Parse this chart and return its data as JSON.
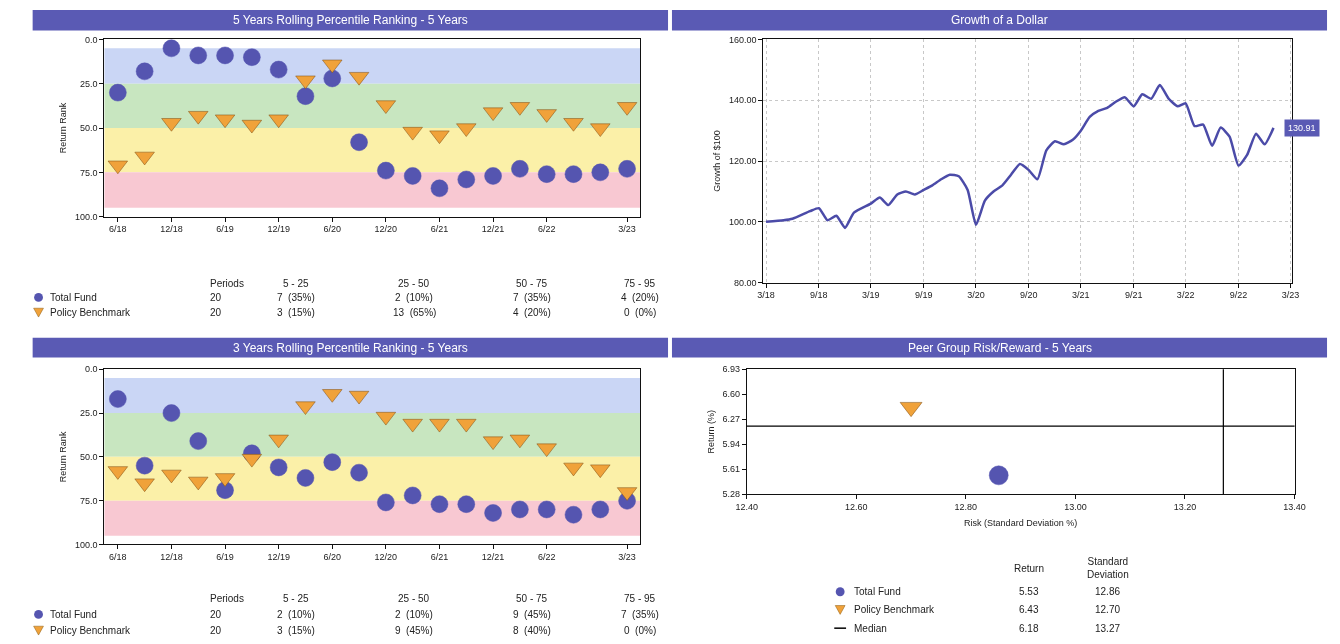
{
  "chart_data": [
    {
      "type": "scatter",
      "title": "5 Years Rolling Percentile Ranking - 5 Years",
      "ylabel": "Return Rank",
      "categories": [
        "6/18",
        null,
        "12/18",
        null,
        "6/19",
        null,
        "12/19",
        null,
        "6/20",
        null,
        "12/20",
        null,
        "6/21",
        null,
        "12/21",
        null,
        "6/22",
        null,
        null,
        "3/23"
      ],
      "series": [
        {
          "name": "Total Fund",
          "color": "#5555b0",
          "marker": "circle",
          "values": [
            30,
            18,
            5,
            9,
            9,
            10,
            17,
            32,
            22,
            58,
            74,
            77,
            84,
            79,
            77,
            73,
            76,
            76,
            75,
            73
          ]
        },
        {
          "name": "Policy Benchmark",
          "color": "#f0a23a",
          "marker": "triangle",
          "values": [
            71,
            66,
            47,
            43,
            45,
            48,
            45,
            23,
            14,
            21,
            37,
            52,
            54,
            50,
            41,
            38,
            42,
            47,
            50,
            38
          ]
        }
      ],
      "ylim": [
        100,
        0
      ],
      "yticks": [
        {
          "value": 0,
          "label": "0.0"
        },
        {
          "value": 25,
          "label": "25.0"
        },
        {
          "value": 50,
          "label": "50.0"
        },
        {
          "value": 75,
          "label": "75.0"
        },
        {
          "value": 100,
          "label": "100.0"
        }
      ],
      "bands": [
        {
          "axis": "y",
          "from": 5,
          "to": 25,
          "color": "#cad6f5"
        },
        {
          "axis": "y",
          "from": 25,
          "to": 50,
          "color": "#c8e6c0"
        },
        {
          "axis": "y",
          "from": 50,
          "to": 75,
          "color": "#fbf0a8"
        },
        {
          "axis": "y",
          "from": 75,
          "to": 95,
          "color": "#f8c8d2"
        }
      ],
      "legend": "bottom left",
      "grid": false,
      "annotations": [
        "Periods",
        "5 - 25",
        "25 - 50",
        "50 - 75",
        "75 - 95",
        "20",
        "7  (35%)",
        "2  (10%)",
        "7  (35%)",
        "4  (20%)",
        "20",
        "3  (15%)",
        "13  (65%)",
        "4  (20%)",
        "0  (0%)"
      ]
    },
    {
      "type": "line",
      "title": "Growth of a Dollar",
      "ylabel": "Growth of $100",
      "x": [
        "2018-03",
        "2018-05",
        "2018-06",
        "2018-08",
        "2018-09",
        "2018-10",
        "2018-11",
        "2018-12",
        "2019-01",
        "2019-03",
        "2019-04",
        "2019-05",
        "2019-06",
        "2019-07",
        "2019-08",
        "2019-09",
        "2019-10",
        "2019-11",
        "2019-12",
        "2020-01",
        "2020-02",
        "2020-03",
        "2020-04",
        "2020-05",
        "2020-06",
        "2020-07",
        "2020-08",
        "2020-09",
        "2020-10",
        "2020-11",
        "2020-12",
        "2021-01",
        "2021-02",
        "2021-03",
        "2021-04",
        "2021-05",
        "2021-06",
        "2021-07",
        "2021-08",
        "2021-09",
        "2021-10",
        "2021-11",
        "2021-12",
        "2022-01",
        "2022-02",
        "2022-03",
        "2022-04",
        "2022-05",
        "2022-06",
        "2022-07",
        "2022-08",
        "2022-09",
        "2022-10",
        "2022-11",
        "2022-12",
        "2023-01"
      ],
      "series": [
        {
          "color": "#4b4ba8",
          "values": [
            100,
            100.5,
            101,
            103.5,
            104.5,
            100.5,
            102,
            98,
            103,
            106,
            108,
            105.5,
            109,
            110,
            109,
            110.5,
            112,
            114,
            115.5,
            115,
            110.5,
            99,
            107,
            110,
            112,
            115.5,
            119,
            117,
            114,
            123.5,
            126.5,
            125.5,
            127,
            130,
            134.5,
            136.5,
            137.5,
            139.5,
            141,
            138,
            142,
            140.5,
            145,
            140.5,
            138,
            139,
            131.5,
            132,
            125,
            131,
            128,
            118.5,
            122,
            129,
            125.5,
            130.91
          ]
        }
      ],
      "xlim": [
        "2018-02-20",
        "2023-03-05"
      ],
      "xticks": [
        {
          "value": "2018-03",
          "label": "3/18"
        },
        {
          "value": "2018-09",
          "label": "9/18"
        },
        {
          "value": "2019-03",
          "label": "3/19"
        },
        {
          "value": "2019-09",
          "label": "9/19"
        },
        {
          "value": "2020-03",
          "label": "3/20"
        },
        {
          "value": "2020-09",
          "label": "9/20"
        },
        {
          "value": "2021-03",
          "label": "3/21"
        },
        {
          "value": "2021-09",
          "label": "9/21"
        },
        {
          "value": "2022-03",
          "label": "3/22"
        },
        {
          "value": "2022-09",
          "label": "9/22"
        },
        {
          "value": "2023-03",
          "label": "3/23"
        }
      ],
      "ylim": [
        80,
        160
      ],
      "yticks": [
        {
          "value": 80,
          "label": "80.00"
        },
        {
          "value": 100,
          "label": "100.00"
        },
        {
          "value": 120,
          "label": "120.00"
        },
        {
          "value": 140,
          "label": "140.00"
        },
        {
          "value": 160,
          "label": "160.00"
        }
      ],
      "grid": true,
      "line_style": "solid",
      "marker": "none",
      "annotations": [
        {
          "text": "130.91",
          "x": "2023-01",
          "y": 130.91
        }
      ]
    },
    {
      "type": "scatter",
      "title": "3 Years Rolling Percentile Ranking - 5 Years",
      "ylabel": "Return Rank",
      "categories": [
        "6/18",
        null,
        "12/18",
        null,
        "6/19",
        null,
        "12/19",
        null,
        "6/20",
        null,
        "12/20",
        null,
        "6/21",
        null,
        "12/21",
        null,
        "6/22",
        null,
        null,
        "3/23"
      ],
      "series": [
        {
          "name": "Total Fund",
          "color": "#5555b0",
          "marker": "circle",
          "values": [
            17,
            55,
            25,
            41,
            69,
            48,
            56,
            62,
            53,
            59,
            76,
            72,
            77,
            77,
            82,
            80,
            80,
            83,
            80,
            75
          ]
        },
        {
          "name": "Policy Benchmark",
          "color": "#f0a23a",
          "marker": "triangle",
          "values": [
            58,
            65,
            60,
            64,
            62,
            51,
            40,
            21,
            14,
            15,
            27,
            31,
            31,
            31,
            41,
            40,
            45,
            56,
            57,
            70
          ]
        }
      ],
      "ylim": [
        100,
        0
      ],
      "yticks": [
        {
          "value": 0,
          "label": "0.0"
        },
        {
          "value": 25,
          "label": "25.0"
        },
        {
          "value": 50,
          "label": "50.0"
        },
        {
          "value": 75,
          "label": "75.0"
        },
        {
          "value": 100,
          "label": "100.0"
        }
      ],
      "bands": [
        {
          "axis": "y",
          "from": 5,
          "to": 25,
          "color": "#cad6f5"
        },
        {
          "axis": "y",
          "from": 25,
          "to": 50,
          "color": "#c8e6c0"
        },
        {
          "axis": "y",
          "from": 50,
          "to": 75,
          "color": "#fbf0a8"
        },
        {
          "axis": "y",
          "from": 75,
          "to": 95,
          "color": "#f8c8d2"
        }
      ],
      "legend": "bottom left",
      "grid": false,
      "annotations": [
        "Periods",
        "5 - 25",
        "25 - 50",
        "50 - 75",
        "75 - 95",
        "20",
        "2  (10%)",
        "2  (10%)",
        "9  (45%)",
        "7  (35%)",
        "20",
        "3  (15%)",
        "9  (45%)",
        "8  (40%)",
        "0  (0%)"
      ]
    },
    {
      "type": "scatter",
      "title": "Peer Group Risk/Reward - 5 Years",
      "xlabel": "Risk (Standard Deviation %)",
      "ylabel": "Return (%)",
      "series": [
        {
          "name": "Total Fund",
          "color": "#5555b0",
          "marker": "circle",
          "x": [
            12.86
          ],
          "values": [
            5.53
          ]
        },
        {
          "name": "Policy Benchmark",
          "color": "#f0a23a",
          "marker": "triangle",
          "x": [
            12.7
          ],
          "values": [
            6.43
          ]
        }
      ],
      "ref_lines": [
        {
          "axis": "y",
          "value": 6.18,
          "label": "Median",
          "color": "#000000"
        },
        {
          "axis": "x",
          "value": 13.27,
          "color": "#000000"
        }
      ],
      "xlim": [
        12.4,
        13.4
      ],
      "xticks": [
        {
          "value": 12.4,
          "label": "12.40"
        },
        {
          "value": 12.6,
          "label": "12.60"
        },
        {
          "value": 12.8,
          "label": "12.80"
        },
        {
          "value": 13.0,
          "label": "13.00"
        },
        {
          "value": 13.2,
          "label": "13.20"
        },
        {
          "value": 13.4,
          "label": "13.40"
        }
      ],
      "ylim": [
        5.28,
        6.93
      ],
      "yticks": [
        {
          "value": 5.28,
          "label": "5.28"
        },
        {
          "value": 5.61,
          "label": "5.61"
        },
        {
          "value": 5.94,
          "label": "5.94"
        },
        {
          "value": 6.27,
          "label": "6.27"
        },
        {
          "value": 6.6,
          "label": "6.60"
        },
        {
          "value": 6.93,
          "label": "6.93"
        }
      ],
      "legend": "bottom",
      "grid": false,
      "annotations": [
        "Return",
        "Standard Deviation",
        "5.53",
        "12.86",
        "6.43",
        "12.70",
        "6.18",
        "13.27"
      ]
    }
  ]
}
